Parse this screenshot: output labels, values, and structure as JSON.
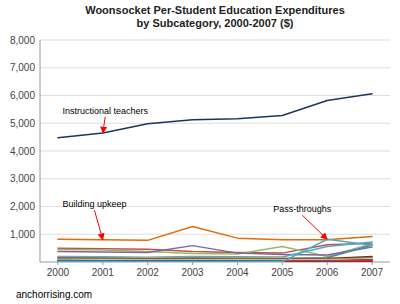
{
  "chart_data": {
    "type": "line",
    "title": "Woonsocket Per-Student Education Expenditures\nby Subcategory, 2000-2007 ($)",
    "source": "anchorrising.com",
    "x": [
      2000,
      2001,
      2002,
      2003,
      2004,
      2005,
      2006,
      2007
    ],
    "xlim": [
      1999.6,
      2007.4
    ],
    "xticks": [
      2000,
      2001,
      2002,
      2003,
      2004,
      2005,
      2006,
      2007
    ],
    "ylim": [
      0,
      8000
    ],
    "yticks": [
      {
        "value": 1000,
        "label": "1,000"
      },
      {
        "value": 2000,
        "label": "2,000"
      },
      {
        "value": 3000,
        "label": "3,000"
      },
      {
        "value": 4000,
        "label": "4,000"
      },
      {
        "value": 5000,
        "label": "5,000"
      },
      {
        "value": 6000,
        "label": "6,000"
      },
      {
        "value": 7000,
        "label": "7,000"
      },
      {
        "value": 8000,
        "label": "8,000"
      }
    ],
    "grid": true,
    "series": [
      {
        "color": "#c0504d",
        "values": [
          500,
          480,
          460,
          380,
          340,
          320,
          620,
          680
        ]
      },
      {
        "color": "#9bbb59",
        "values": [
          450,
          430,
          380,
          310,
          290,
          560,
          200,
          660
        ]
      },
      {
        "color": "#8064a2",
        "values": [
          380,
          360,
          340,
          590,
          320,
          270,
          250,
          540
        ]
      },
      {
        "color": "#4bacc6",
        "values": [
          200,
          190,
          170,
          200,
          190,
          180,
          560,
          720
        ]
      },
      {
        "color": "#f79646",
        "values": [
          170,
          160,
          140,
          160,
          150,
          140,
          150,
          160
        ]
      },
      {
        "color": "#4f81bd",
        "values": [
          150,
          140,
          120,
          140,
          130,
          120,
          150,
          610
        ]
      },
      {
        "color": "#772c00",
        "values": [
          130,
          120,
          100,
          120,
          110,
          100,
          120,
          200
        ]
      },
      {
        "color": "#948a54",
        "values": [
          110,
          100,
          90,
          100,
          95,
          90,
          100,
          140
        ]
      },
      {
        "color": "#d99694",
        "values": [
          100,
          90,
          80,
          80,
          75,
          70,
          80,
          120
        ]
      },
      {
        "color": "#ebf9a8",
        "values": [
          80,
          75,
          65,
          65,
          60,
          55,
          60,
          100
        ]
      },
      {
        "color": "#76933c",
        "values": [
          60,
          55,
          50,
          50,
          45,
          40,
          50,
          80
        ]
      },
      {
        "color": "#403152",
        "values": [
          50,
          45,
          40,
          40,
          35,
          30,
          35,
          70
        ]
      },
      {
        "color": "#0070c0",
        "values": [
          40,
          35,
          30,
          30,
          25,
          20,
          25,
          60
        ]
      },
      {
        "color": "#00b0f0",
        "values": [
          30,
          25,
          20,
          20,
          18,
          15,
          18,
          50
        ]
      },
      {
        "color": "#7030a0",
        "values": [
          20,
          18,
          15,
          15,
          12,
          10,
          12,
          40
        ]
      },
      {
        "color": "#ff0000",
        "values": [
          5,
          5,
          5,
          5,
          5,
          5,
          5,
          30
        ]
      },
      {
        "color": "#e36c09",
        "values": [
          820,
          800,
          780,
          1280,
          860,
          800,
          800,
          920
        ]
      },
      {
        "color": "#4bacc6",
        "values": [
          5,
          5,
          5,
          5,
          5,
          5,
          820,
          600
        ]
      },
      {
        "color": "#17375e",
        "values": [
          4480,
          4650,
          4980,
          5130,
          5160,
          5280,
          5820,
          6060
        ]
      }
    ],
    "annotations": [
      {
        "text": "Instructional teachers",
        "x": 2001,
        "y": 4650,
        "text_x": 2000.1,
        "text_y": 5270
      },
      {
        "text": "Building upkeep",
        "x": 2001,
        "y": 800,
        "text_x": 2000.1,
        "text_y": 1900
      },
      {
        "text": "Pass-throughs",
        "x": 2006,
        "y": 820,
        "text_x": 2004.8,
        "text_y": 1720
      }
    ]
  }
}
